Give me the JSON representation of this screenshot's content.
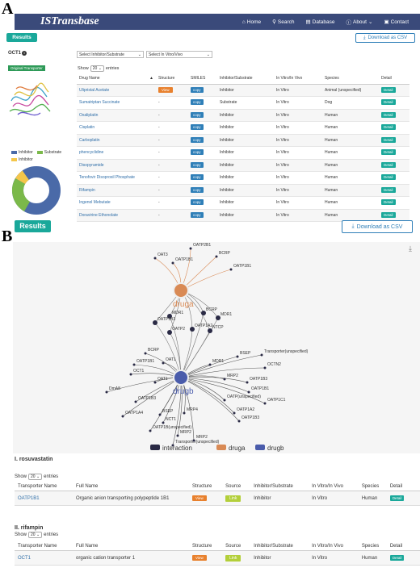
{
  "panels": {
    "a": "A",
    "b": "B"
  },
  "nav": {
    "brand": "ISTransbase",
    "items": [
      {
        "icon": "home-icon",
        "glyph": "⌂",
        "label": "Home"
      },
      {
        "icon": "search-icon",
        "glyph": "⚲",
        "label": "Search"
      },
      {
        "icon": "database-icon",
        "glyph": "▤",
        "label": "Database"
      },
      {
        "icon": "info-icon",
        "glyph": "ⓘ",
        "label": "About"
      },
      {
        "icon": "contact-icon",
        "glyph": "▣",
        "label": "Contact"
      }
    ],
    "about_caret": "⌄"
  },
  "results_label": "Results",
  "csv_label": "Download as CSV",
  "transporter": {
    "name": "OCT1",
    "info": "i",
    "tag": "Original Transporter"
  },
  "filters": {
    "type": "Select Inhibitor/Substrate",
    "mode": "Select In Vitro/Vivo"
  },
  "show": {
    "pre": "Show",
    "value": "20",
    "post": "entries",
    "caret": "⌄"
  },
  "legend_a": [
    {
      "label": "Inhibitor",
      "color": "#4a6aa8"
    },
    {
      "label": "Substrate",
      "color": "#7bb94a"
    },
    {
      "label": "Inhibitor",
      "color": "#f4c64a"
    }
  ],
  "donut": {
    "colors": [
      "#4a6aa8",
      "#7bb94a",
      "#f4c64a"
    ]
  },
  "table_a": {
    "headers": [
      "Drug Name",
      "Structure",
      "SMILES",
      "Inhibitor/Substrate",
      "In Vitro/In Vivo",
      "Species",
      "Detail"
    ],
    "sort_icon": "▲",
    "rows": [
      [
        "Ulipristal Acetate",
        "View",
        "copy",
        "Inhibitor",
        "In Vitro",
        "Animal (unspecified)",
        "Detail"
      ],
      [
        "Sumatriptan Succinate",
        "-",
        "copy",
        "Substrate",
        "In Vitro",
        "Dog",
        "Detail"
      ],
      [
        "Oxaliplatin",
        "-",
        "copy",
        "Inhibitor",
        "In Vitro",
        "Human",
        "Detail"
      ],
      [
        "Cisplatin",
        "-",
        "copy",
        "Inhibitor",
        "In Vitro",
        "Human",
        "Detail"
      ],
      [
        "Carboplatin",
        "-",
        "copy",
        "Inhibitor",
        "In Vitro",
        "Human",
        "Detail"
      ],
      [
        "phencyclidine",
        "-",
        "copy",
        "Inhibitor",
        "In Vitro",
        "Human",
        "Detail"
      ],
      [
        "Disopyramide",
        "-",
        "copy",
        "Inhibitor",
        "In Vitro",
        "Human",
        "Detail"
      ],
      [
        "Tenofovir Disoproxil Phosphate",
        "-",
        "copy",
        "Inhibitor",
        "In Vitro",
        "Human",
        "Detail"
      ],
      [
        "Rifampin",
        "-",
        "copy",
        "Inhibitor",
        "In Vitro",
        "Human",
        "Detail"
      ],
      [
        "Ingenol Mebutate",
        "-",
        "copy",
        "Inhibitor",
        "In Vitro",
        "Human",
        "Detail"
      ],
      [
        "Doravirine Ethonolate",
        "-",
        "copy",
        "Inhibitor",
        "In Vitro",
        "Human",
        "Detail"
      ]
    ]
  },
  "graph": {
    "hub_a": "druga",
    "hub_b": "drugb",
    "download_icon": "⤓",
    "top_nodes": [
      "OAT3",
      "OATP2B1",
      "BCRP",
      "OATP1B1",
      "OATP1B1"
    ],
    "shared_nodes": [
      "MDR1",
      "BCRP",
      "OATP1B3",
      "OATP2",
      "OATP1A2",
      "MDR1",
      "NTCP"
    ],
    "b_nodes": [
      "OAT1",
      "BCRP",
      "OATP1B1",
      "OCT1",
      "OAT1",
      "DmA8",
      "OATP1B3",
      "OATP1A4",
      "BSEP",
      "NCT1",
      "MRP4",
      "MRP2",
      "OATP1B(unspecified)",
      "Transporter(unspecified)",
      "MRP2",
      "OATP1B3",
      "OATP1A2",
      "OATP(unspecified)",
      "OATP1B1",
      "OATP1B3",
      "MRP2",
      "MDR1",
      "BSEP",
      "Transporter(unspecified)",
      "OCTN2",
      "OATP1C1"
    ],
    "legend": [
      {
        "label": "interaction",
        "color": "#2a2a45"
      },
      {
        "label": "druga",
        "color": "#d98a55"
      },
      {
        "label": "drugb",
        "color": "#4a5cab"
      }
    ]
  },
  "section_1": {
    "title": "I. rosuvastatin",
    "headers": [
      "Transporter Name",
      "Full Name",
      "Structure",
      "Source",
      "Inhibitor/Substrate",
      "In Vitro/In Vivo",
      "Species",
      "Detail"
    ],
    "row": [
      "OATP1B1",
      "Organic anion transporting polypeptide 1B1",
      "View",
      "Link",
      "Inhibitor",
      "In Vitro",
      "Human",
      "Detail"
    ]
  },
  "section_2": {
    "title": "II. rifampin",
    "headers": [
      "Transporter Name",
      "Full Name",
      "Structure",
      "Source",
      "Inhibitor/Substrate",
      "In Vitro/In Vivo",
      "Species",
      "Detail"
    ],
    "row": [
      "OCT1",
      "organic cation transporter 1",
      "View",
      "Link",
      "Inhibitor",
      "In Vitro",
      "Human",
      "Detail"
    ]
  }
}
